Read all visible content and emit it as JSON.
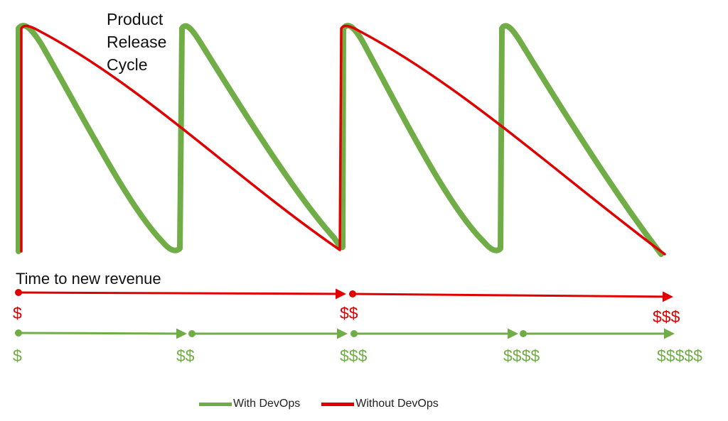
{
  "title_lines": [
    "Product",
    "Release",
    "Cycle"
  ],
  "time_label": "Time to new revenue",
  "colors": {
    "with_devops": "#70ad47",
    "without_devops": "#e00000"
  },
  "legend": {
    "with_label": "With DevOps",
    "without_label": "Without DevOps"
  },
  "without_devops_revenue": [
    "$",
    "$$",
    "$$$"
  ],
  "with_devops_revenue": [
    "$",
    "$$",
    "$$$",
    "$$$$",
    "$$$$$"
  ],
  "chart_data": {
    "type": "line",
    "series": [
      {
        "name": "With DevOps",
        "release_count": 4
      },
      {
        "name": "Without DevOps",
        "release_count": 2
      }
    ]
  }
}
